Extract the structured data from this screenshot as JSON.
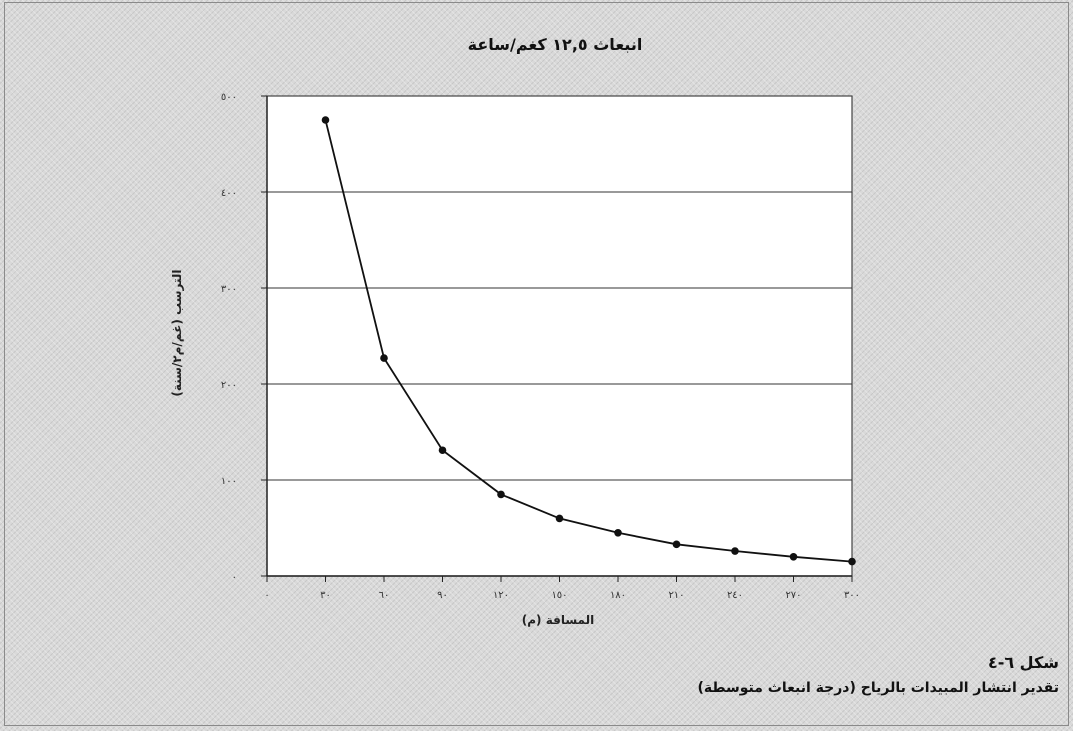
{
  "chart_data": {
    "type": "line",
    "title": "انبعاث ١٢,٥ كغم/ساعة",
    "xlabel": "المسافة (م)",
    "ylabel": "الترسب (غم/م٢/سنة)",
    "x": [
      30,
      60,
      90,
      120,
      150,
      180,
      210,
      240,
      270,
      300
    ],
    "y": [
      475,
      227,
      131,
      85,
      60,
      45,
      33,
      26,
      20,
      15
    ],
    "xlim": [
      0,
      300
    ],
    "ylim": [
      0,
      500
    ],
    "x_ticks": [
      0,
      30,
      60,
      90,
      120,
      150,
      180,
      210,
      240,
      270,
      300
    ],
    "x_tick_labels": [
      "٠",
      "٣٠",
      "٦٠",
      "٩٠",
      "١٢٠",
      "١٥٠",
      "١٨٠",
      "٢١٠",
      "٢٤٠",
      "٢٧٠",
      "٣٠٠"
    ],
    "y_ticks": [
      0,
      100,
      200,
      300,
      400,
      500
    ],
    "y_tick_labels": [
      "٠",
      "١٠٠",
      "٢٠٠",
      "٣٠٠",
      "٤٠٠",
      "٥٠٠"
    ],
    "grid": true,
    "line_color": "#111111"
  },
  "caption": {
    "figure_number": "شكل ٦-٤",
    "figure_title": "تقدير انتشار المبيدات بالرياح (درجة انبعاث متوسطة)"
  }
}
